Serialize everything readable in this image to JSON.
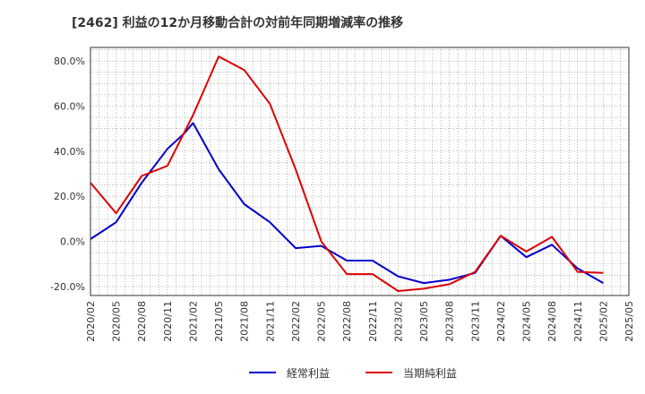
{
  "chart_data": {
    "type": "line",
    "title": "[2462]  利益の12か月移動合計の対前年同期増減率の推移",
    "xlabel": "",
    "ylabel": "",
    "x_ticks": [
      "2020/02",
      "2020/05",
      "2020/08",
      "2020/11",
      "2021/02",
      "2021/05",
      "2021/08",
      "2021/11",
      "2022/02",
      "2022/05",
      "2022/08",
      "2022/11",
      "2023/02",
      "2023/05",
      "2023/08",
      "2023/11",
      "2024/02",
      "2024/05",
      "2024/08",
      "2024/11",
      "2025/02",
      "2025/05"
    ],
    "y_ticks": [
      -20,
      0,
      20,
      40,
      60,
      80
    ],
    "y_tick_labels": [
      "-20.0%",
      "0.0%",
      "20.0%",
      "40.0%",
      "60.0%",
      "80.0%"
    ],
    "ylim": [
      -24,
      86
    ],
    "grid": true,
    "legend_position": "bottom",
    "series": [
      {
        "name": "経常利益",
        "color": "#0000cc",
        "points": [
          [
            "2020/02",
            1
          ],
          [
            "2020/05",
            8.5
          ],
          [
            "2020/08",
            26
          ],
          [
            "2020/11",
            41
          ],
          [
            "2021/01",
            48
          ],
          [
            "2021/02",
            52.5
          ],
          [
            "2021/05",
            32
          ],
          [
            "2021/08",
            16.5
          ],
          [
            "2021/11",
            8.5
          ],
          [
            "2022/02",
            -3
          ],
          [
            "2022/05",
            -2
          ],
          [
            "2022/08",
            -8.5
          ],
          [
            "2022/11",
            -8.5
          ],
          [
            "2023/02",
            -15.5
          ],
          [
            "2023/05",
            -18.5
          ],
          [
            "2023/08",
            -17
          ],
          [
            "2023/11",
            -14
          ],
          [
            "2024/02",
            2.5
          ],
          [
            "2024/05",
            -7
          ],
          [
            "2024/08",
            -1.5
          ],
          [
            "2024/11",
            -12
          ],
          [
            "2025/02",
            -18.5
          ]
        ]
      },
      {
        "name": "当期純利益",
        "color": "#dd0000",
        "points": [
          [
            "2020/02",
            26
          ],
          [
            "2020/05",
            12.5
          ],
          [
            "2020/08",
            29
          ],
          [
            "2020/11",
            33.5
          ],
          [
            "2021/02",
            56
          ],
          [
            "2021/05",
            82
          ],
          [
            "2021/08",
            76
          ],
          [
            "2021/11",
            61
          ],
          [
            "2022/02",
            32
          ],
          [
            "2022/05",
            0
          ],
          [
            "2022/08",
            -14.5
          ],
          [
            "2022/11",
            -14.5
          ],
          [
            "2023/02",
            -22
          ],
          [
            "2023/05",
            -21
          ],
          [
            "2023/08",
            -19
          ],
          [
            "2023/11",
            -13.5
          ],
          [
            "2024/02",
            2.5
          ],
          [
            "2024/05",
            -4.5
          ],
          [
            "2024/08",
            2
          ],
          [
            "2024/11",
            -13.5
          ],
          [
            "2025/02",
            -14
          ]
        ]
      }
    ]
  }
}
